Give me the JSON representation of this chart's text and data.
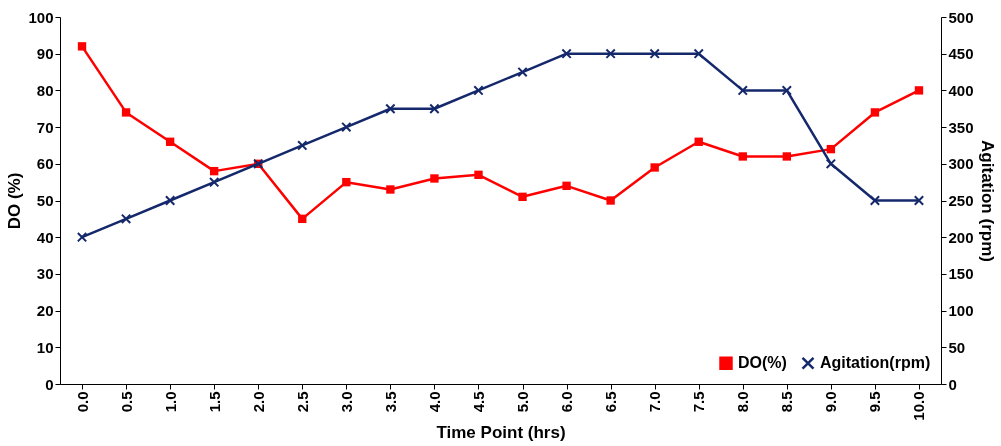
{
  "chart_data": {
    "type": "line",
    "xlabel": "Time Point (hrs)",
    "ylabel": "DO (%)",
    "y2label": "Agitation (rpm)",
    "categories": [
      "0.0",
      "0.5",
      "1.0",
      "1.5",
      "2.0",
      "2.5",
      "3.0",
      "3.5",
      "4.0",
      "4.5",
      "5.0",
      "6.0",
      "6.5",
      "7.0",
      "7.5",
      "8.0",
      "8.5",
      "9.0",
      "9.5",
      "10.0"
    ],
    "series": [
      {
        "name": "DO(%)",
        "color": "#ff0000",
        "marker": "square",
        "values": [
          92,
          74,
          66,
          58,
          60,
          45,
          55,
          53,
          56,
          57,
          51,
          54,
          50,
          59,
          66,
          62,
          62,
          64,
          74,
          80
        ]
      },
      {
        "name": "Agitation(rpm)",
        "color": "#14286b",
        "marker": "cross",
        "axis": "y2",
        "values": [
          200,
          225,
          250,
          275,
          300,
          325,
          350,
          375,
          375,
          400,
          425,
          450,
          450,
          450,
          450,
          400,
          400,
          300,
          250,
          250
        ]
      }
    ],
    "ylim": [
      0,
      100
    ],
    "yticks": [
      0,
      10,
      20,
      30,
      40,
      50,
      60,
      70,
      80,
      90,
      100
    ],
    "y2lim": [
      0,
      500
    ],
    "y2ticks": [
      0,
      50,
      100,
      150,
      200,
      250,
      300,
      350,
      400,
      450,
      500
    ],
    "legend": "bottom right",
    "grid": false
  }
}
